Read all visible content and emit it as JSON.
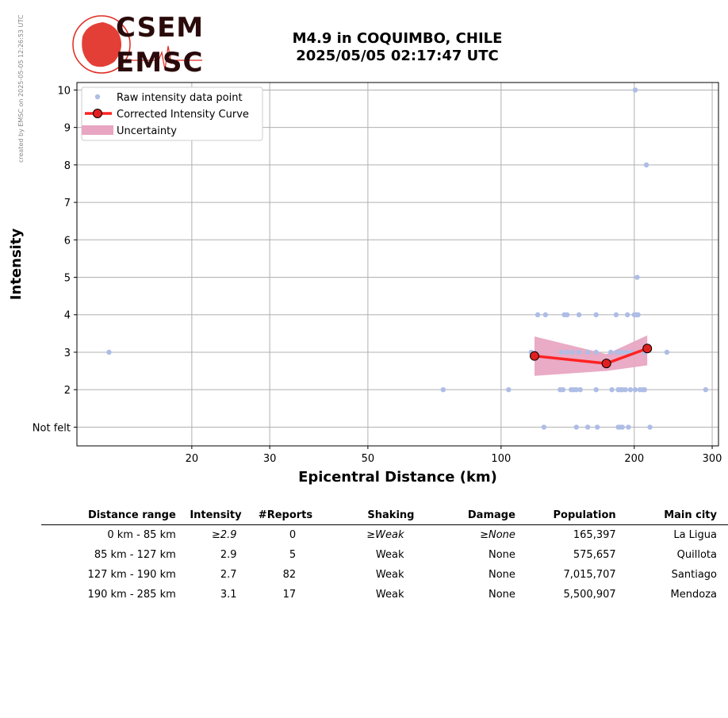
{
  "header": {
    "title_line1": "M4.9 in COQUIMBO, CHILE",
    "title_line2": "2025/05/05 02:17:47 UTC",
    "credit": "created by EMSC on 2025-05-05 12:26:53 UTC",
    "logo_top": "CSEM",
    "logo_bottom": "EMSC"
  },
  "colors": {
    "raw_points": "#aebde6",
    "curve": "#ff2222",
    "curve_marker": "#e02020",
    "uncertainty": "#e8a6c2",
    "grid": "#b0b0b0",
    "logo_red": "#e02a20"
  },
  "chart_data": {
    "type": "scatter",
    "xlabel": "Epicentral Distance (km)",
    "ylabel": "Intensity",
    "x_scale": "log",
    "xlim": [
      11,
      310
    ],
    "ylim": [
      0.5,
      10.2
    ],
    "x_ticks": [
      20,
      30,
      50,
      100,
      200,
      300
    ],
    "x_tick_labels": [
      "20",
      "30",
      "50",
      "100",
      "200",
      "300"
    ],
    "y_ticks": [
      1,
      2,
      3,
      4,
      5,
      6,
      7,
      8,
      9,
      10
    ],
    "y_tick_labels": [
      "Not felt",
      "2",
      "3",
      "4",
      "5",
      "6",
      "7",
      "8",
      "9",
      "10"
    ],
    "grid": true,
    "legend_position": "top-left",
    "legend": [
      "Raw intensity data point",
      "Corrected Intensity Curve",
      "Uncertainty"
    ],
    "raw_points": [
      [
        13,
        3
      ],
      [
        117,
        3
      ],
      [
        137,
        3
      ],
      [
        141,
        3
      ],
      [
        145,
        3
      ],
      [
        150,
        3
      ],
      [
        157,
        3
      ],
      [
        164,
        3
      ],
      [
        177,
        3
      ],
      [
        183,
        3
      ],
      [
        187,
        3
      ],
      [
        192,
        3
      ],
      [
        197,
        3
      ],
      [
        211,
        3
      ],
      [
        237,
        3
      ],
      [
        121,
        4
      ],
      [
        126,
        4
      ],
      [
        139,
        4
      ],
      [
        141,
        4
      ],
      [
        150,
        4
      ],
      [
        164,
        4
      ],
      [
        182,
        4
      ],
      [
        193,
        4
      ],
      [
        200,
        4
      ],
      [
        202,
        4
      ],
      [
        204,
        4
      ],
      [
        203,
        5
      ],
      [
        213,
        8
      ],
      [
        201,
        10
      ],
      [
        74,
        2
      ],
      [
        104,
        2
      ],
      [
        136,
        2
      ],
      [
        138,
        2
      ],
      [
        144,
        2
      ],
      [
        146,
        2
      ],
      [
        148,
        2
      ],
      [
        151,
        2
      ],
      [
        164,
        2
      ],
      [
        178,
        2
      ],
      [
        184,
        2
      ],
      [
        186,
        2
      ],
      [
        188,
        2
      ],
      [
        191,
        2
      ],
      [
        196,
        2
      ],
      [
        201,
        2
      ],
      [
        206,
        2
      ],
      [
        209,
        2
      ],
      [
        211,
        2
      ],
      [
        290,
        2
      ],
      [
        125,
        1
      ],
      [
        148,
        1
      ],
      [
        157,
        1
      ],
      [
        165,
        1
      ],
      [
        184,
        1
      ],
      [
        186,
        1
      ],
      [
        188,
        1
      ],
      [
        194,
        1
      ],
      [
        217,
        1
      ]
    ],
    "series": [
      {
        "name": "Corrected Intensity Curve",
        "x": [
          119,
          173,
          214
        ],
        "y": [
          2.9,
          2.7,
          3.1
        ]
      }
    ],
    "uncertainty_band": {
      "x": [
        119,
        173,
        214
      ],
      "upper": [
        3.42,
        2.95,
        3.45
      ],
      "lower": [
        2.37,
        2.5,
        2.65
      ]
    }
  },
  "table": {
    "headers": [
      "Distance range",
      "Intensity",
      "#Reports",
      "Shaking",
      "Damage",
      "Population",
      "Main city"
    ],
    "rows": [
      [
        "0 km -   85 km",
        "≥2.9",
        "0",
        "≥Weak",
        "≥None",
        "165,397",
        "La Ligua"
      ],
      [
        "85 km -  127 km",
        "2.9",
        "5",
        "Weak",
        "None",
        "575,657",
        "Quillota"
      ],
      [
        "127 km -  190 km",
        "2.7",
        "82",
        "Weak",
        "None",
        "7,015,707",
        "Santiago"
      ],
      [
        "190 km -  285 km",
        "3.1",
        "17",
        "Weak",
        "None",
        "5,500,907",
        "Mendoza"
      ]
    ]
  }
}
